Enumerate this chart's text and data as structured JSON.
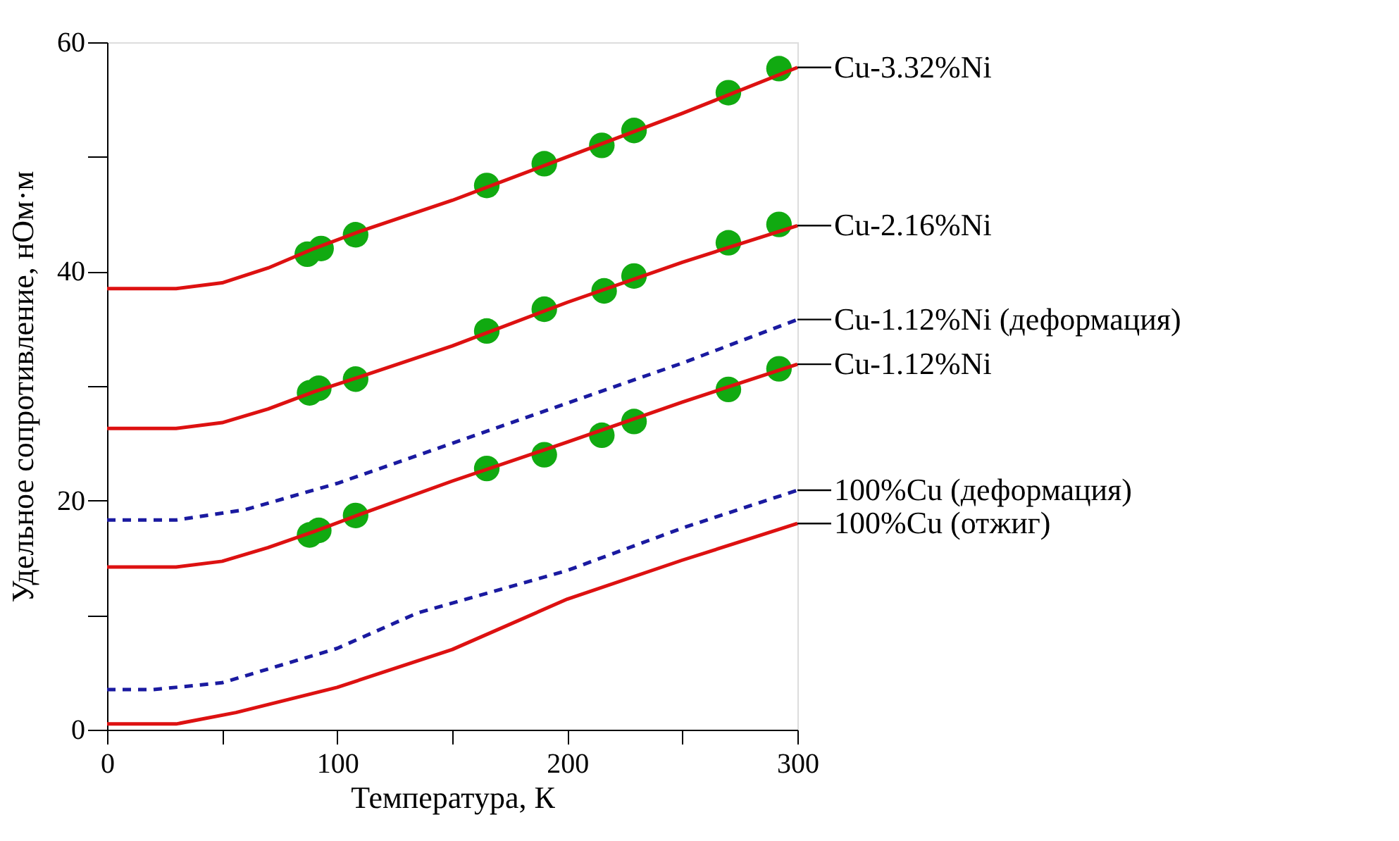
{
  "chart_data": {
    "type": "line",
    "xlabel": "Температура, К",
    "ylabel": "Удельное сопротивление, нОм·м",
    "xlim": [
      0,
      300
    ],
    "ylim": [
      0,
      60
    ],
    "xticks": [
      0,
      {
        "value": 50,
        "label": null
      },
      100,
      {
        "value": 150,
        "label": null
      },
      200,
      {
        "value": 250,
        "label": null
      },
      300
    ],
    "yticks": [
      0,
      {
        "value": 10,
        "label": null
      },
      20,
      {
        "value": 30,
        "label": null
      },
      40,
      {
        "value": 50,
        "label": null
      },
      60
    ],
    "grid": false,
    "legend": false,
    "series": [
      {
        "name": "Cu-3.32%Ni",
        "color": "#dd1111",
        "line_style": "solid",
        "marker": "none",
        "x": [
          0,
          30,
          50,
          70,
          90,
          110,
          150,
          200,
          250,
          300
        ],
        "values": [
          38.5,
          38.5,
          39,
          40.3,
          42,
          43.5,
          46.2,
          50,
          53.8,
          57.8
        ]
      },
      {
        "type": "scatter",
        "color": "#11aa11",
        "marker": "circle",
        "x": [
          87,
          93,
          108,
          165,
          190,
          215,
          229,
          270,
          292
        ],
        "values": [
          41.5,
          42,
          43.2,
          47.5,
          49.4,
          51,
          52.3,
          55.6,
          57.7
        ]
      },
      {
        "name": "Cu-2.16%Ni",
        "color": "#dd1111",
        "line_style": "solid",
        "marker": "none",
        "x": [
          0,
          30,
          50,
          70,
          90,
          110,
          150,
          200,
          250,
          300
        ],
        "values": [
          26.3,
          26.3,
          26.8,
          28,
          29.5,
          30.8,
          33.5,
          37.3,
          40.8,
          44.0
        ]
      },
      {
        "type": "scatter",
        "color": "#11aa11",
        "marker": "circle",
        "x": [
          88,
          92,
          108,
          165,
          190,
          216,
          229,
          270,
          292
        ],
        "values": [
          29.4,
          29.8,
          30.6,
          34.8,
          36.7,
          38.3,
          39.6,
          42.5,
          44.1
        ]
      },
      {
        "name": "Cu-1.12%Ni (деформация)",
        "color": "#1a1aa0",
        "line_style": "dashed",
        "marker": "none",
        "x": [
          0,
          30,
          60,
          100,
          150,
          200,
          250,
          300
        ],
        "values": [
          18.3,
          18.3,
          19.2,
          21.5,
          25,
          28.5,
          32,
          35.8
        ]
      },
      {
        "name": "Cu-1.12%Ni",
        "color": "#dd1111",
        "line_style": "solid",
        "marker": "none",
        "x": [
          0,
          30,
          50,
          70,
          90,
          110,
          150,
          200,
          250,
          300
        ],
        "values": [
          14.2,
          14.2,
          14.7,
          15.9,
          17.3,
          18.8,
          21.7,
          25.1,
          28.6,
          31.9
        ]
      },
      {
        "type": "scatter",
        "color": "#11aa11",
        "marker": "circle",
        "x": [
          88,
          92,
          108,
          165,
          190,
          215,
          229,
          270,
          292
        ],
        "values": [
          17,
          17.4,
          18.7,
          22.8,
          24,
          25.7,
          26.9,
          29.7,
          31.5
        ]
      },
      {
        "name": "100%Cu (деформация)",
        "color": "#1a1aa0",
        "line_style": "dashed",
        "marker": "none",
        "x": [
          0,
          20,
          50,
          100,
          135,
          200,
          250,
          300
        ],
        "values": [
          3.5,
          3.5,
          4.1,
          7.1,
          10.2,
          13.9,
          17.6,
          20.9
        ]
      },
      {
        "name": "100%Cu (отжиг)",
        "color": "#dd1111",
        "line_style": "solid",
        "marker": "none",
        "x": [
          0,
          30,
          56,
          100,
          150,
          200,
          250,
          300
        ],
        "values": [
          0.5,
          0.5,
          1.5,
          3.7,
          7.0,
          11.4,
          14.8,
          18.0
        ]
      }
    ]
  }
}
